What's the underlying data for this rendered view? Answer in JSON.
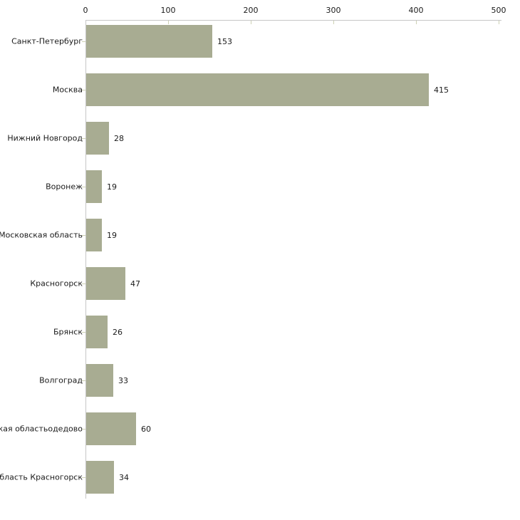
{
  "chart_data": {
    "type": "bar",
    "orientation": "horizontal",
    "title": "",
    "xlabel": "",
    "ylabel": "",
    "categories": [
      "Санкт-Петербург",
      "Москва",
      "Нижний Новгород",
      "Воронеж",
      "Московская область",
      "Красногорск",
      "Брянск",
      "Волгоград",
      "ская областьодедово",
      "область Красногорск"
    ],
    "values": [
      153,
      415,
      28,
      19,
      19,
      47,
      26,
      33,
      60,
      34
    ],
    "value_labels": [
      "153",
      "415",
      "28",
      "19",
      "19",
      "47",
      "26",
      "33",
      "60",
      "34"
    ],
    "x_axis": {
      "position": "top",
      "ticks": [
        0,
        100,
        200,
        300,
        400,
        500
      ],
      "tick_labels": [
        "0",
        "100",
        "200",
        "300",
        "400",
        "500"
      ],
      "range": [
        0,
        500
      ]
    },
    "legend": null,
    "grid": false,
    "colors": {
      "bar_fill": "#a8ac92",
      "axis_line": "#c6c6c6",
      "tick_mark": "#cdd1b4",
      "text": "#1a1a1a",
      "background": "#ffffff"
    }
  }
}
